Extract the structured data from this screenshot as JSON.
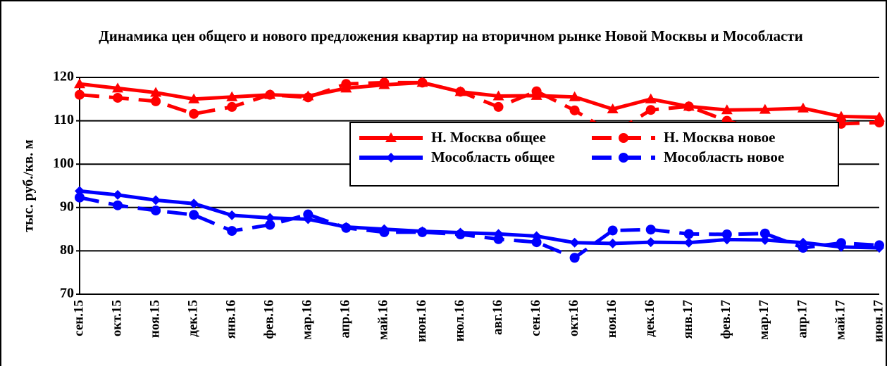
{
  "chart_data": {
    "type": "line",
    "title": "Динамика цен общего и нового предложения квартир на вторичном рынке Новой Москвы и Мособласти",
    "y_label": "тыс. руб./кв. м",
    "categories": [
      "сен.15",
      "окт.15",
      "ноя.15",
      "дек.15",
      "янв.16",
      "фев.16",
      "мар.16",
      "апр.16",
      "май.16",
      "июн.16",
      "июл.16",
      "авг.16",
      "сен.16",
      "окт.16",
      "ноя.16",
      "дек.16",
      "янв.17",
      "фев.17",
      "мар.17",
      "апр.17",
      "май.17",
      "июн.17"
    ],
    "ylim": [
      70,
      120
    ],
    "yticks": [
      70,
      80,
      90,
      100,
      110,
      120
    ],
    "grid": true,
    "series": [
      {
        "name": "Н. Москва общее",
        "color": "#ff0000",
        "marker": "triangle",
        "dashed": false,
        "values": [
          118.5,
          117.5,
          116.5,
          115,
          115.5,
          116,
          115.7,
          117.5,
          118.3,
          118.8,
          116.7,
          115.7,
          115.8,
          115.5,
          112.7,
          115,
          113.3,
          112.5,
          112.6,
          112.9,
          111,
          110.8
        ]
      },
      {
        "name": "Н. Москва новое",
        "color": "#ff0000",
        "marker": "circle",
        "dashed": true,
        "values": [
          116,
          115.3,
          114.5,
          111.6,
          113.2,
          116,
          115.4,
          118.5,
          118.8,
          118.8,
          116.7,
          113.2,
          116.8,
          112.4,
          107,
          112.5,
          113.3,
          110,
          107.5,
          106.5,
          109.3,
          109.6
        ]
      },
      {
        "name": "Мособласть общее",
        "color": "#0000ff",
        "marker": "diamond",
        "dashed": false,
        "values": [
          93.8,
          92.9,
          91.7,
          90.9,
          88.2,
          87.6,
          87.3,
          85.5,
          85,
          84.5,
          84.2,
          83.9,
          83.4,
          81.9,
          81.7,
          82,
          81.9,
          82.6,
          82.5,
          81.9,
          80.9,
          80.7
        ]
      },
      {
        "name": "Мособласть новое",
        "color": "#0000ff",
        "marker": "circle",
        "dashed": true,
        "values": [
          92.3,
          90.5,
          89.3,
          88.3,
          84.6,
          86,
          88.4,
          85.3,
          84.3,
          84.3,
          83.8,
          82.7,
          82,
          78.4,
          84.7,
          84.9,
          83.9,
          83.8,
          84,
          80.7,
          81.8,
          81.3
        ]
      }
    ]
  }
}
